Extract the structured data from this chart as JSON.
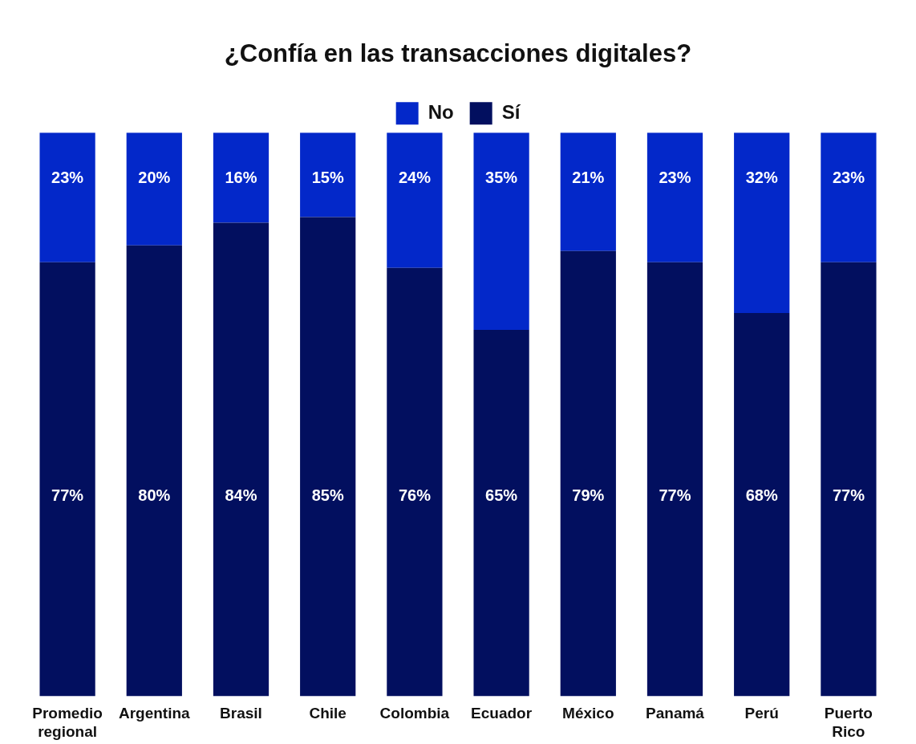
{
  "chart_data": {
    "type": "bar",
    "title": "¿Confía en las transacciones digitales?",
    "categories": [
      "Promedio regional",
      "Argentina",
      "Brasil",
      "Chile",
      "Colombia",
      "Ecuador",
      "México",
      "Panamá",
      "Perú",
      "Puerto Rico"
    ],
    "stacked": true,
    "legend": "top",
    "grid": false,
    "tick_labels": "x",
    "series": [
      {
        "name": "Sí",
        "color": "#020f5f",
        "values": [
          77,
          80,
          84,
          85,
          76,
          65,
          79,
          77,
          68,
          77
        ],
        "value_labels": [
          "77%",
          "80%",
          "84%",
          "85%",
          "76%",
          "65%",
          "79%",
          "77%",
          "68%",
          "77%"
        ]
      },
      {
        "name": "No",
        "color": "#0328c9",
        "values": [
          23,
          20,
          16,
          15,
          24,
          35,
          21,
          23,
          32,
          23
        ],
        "value_labels": [
          "23%",
          "20%",
          "16%",
          "15%",
          "24%",
          "35%",
          "21%",
          "23%",
          "32%",
          "23%"
        ]
      }
    ]
  }
}
